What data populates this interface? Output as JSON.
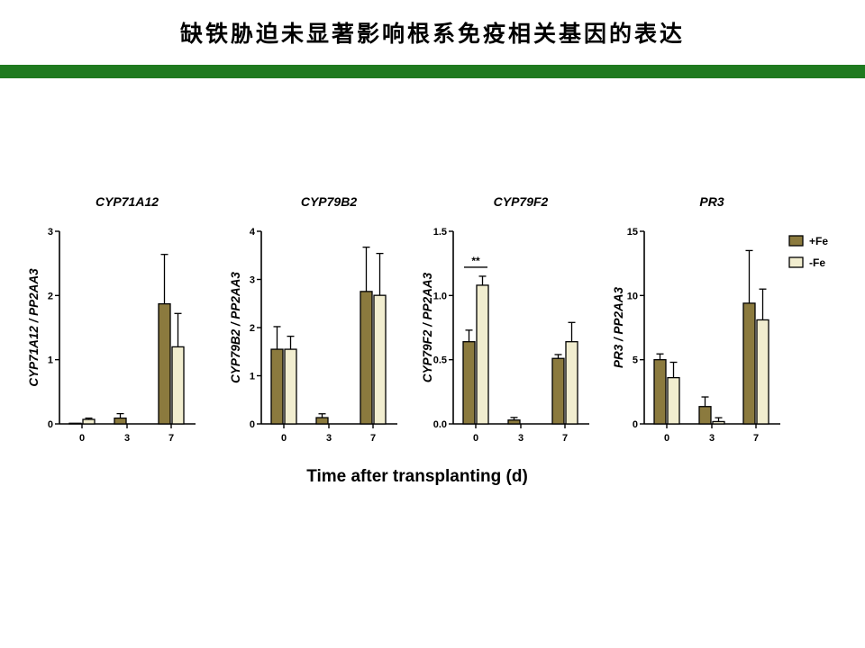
{
  "slide": {
    "title": "缺铁胁迫未显著影响根系免疫相关基因的表达"
  },
  "colors": {
    "accent_rule": "#1f7a1f",
    "plus_fe": "#8b7a3e",
    "minus_fe": "#f1edcf"
  },
  "chart_data": {
    "type": "bar",
    "xlabel": "Time after transplanting (d)",
    "categories": [
      "0",
      "3",
      "7"
    ],
    "legend": {
      "placement": "right",
      "entries": [
        {
          "label": "+Fe",
          "color": "#8b7a3e"
        },
        {
          "label": "-Fe",
          "color": "#f1edcf"
        }
      ]
    },
    "panels": [
      {
        "title": "CYP71A12",
        "ylabel": "CYP71A12 / PP2AA3",
        "ylim": [
          0,
          3
        ],
        "yticks": [
          "0",
          "1",
          "2",
          "3"
        ],
        "series": [
          {
            "name": "+Fe",
            "values": [
              0.01,
              0.09,
              1.87
            ],
            "errors": [
              0.0,
              0.07,
              0.77
            ]
          },
          {
            "name": "-Fe",
            "values": [
              0.07,
              0.0,
              1.2
            ],
            "errors": [
              0.02,
              0.0,
              0.52
            ]
          }
        ],
        "significance": []
      },
      {
        "title": "CYP79B2",
        "ylabel": "CYP79B2 / PP2AA3",
        "ylim": [
          0,
          4
        ],
        "yticks": [
          "0",
          "1",
          "2",
          "3",
          "4"
        ],
        "series": [
          {
            "name": "+Fe",
            "values": [
              1.55,
              0.13,
              2.75
            ],
            "errors": [
              0.47,
              0.08,
              0.92
            ]
          },
          {
            "name": "-Fe",
            "values": [
              1.55,
              0.0,
              2.67
            ],
            "errors": [
              0.27,
              0.0,
              0.87
            ]
          }
        ],
        "significance": []
      },
      {
        "title": "CYP79F2",
        "ylabel": "CYP79F2 / PP2AA3",
        "ylim": [
          0,
          1.5
        ],
        "yticks": [
          "0.0",
          "0.5",
          "1.0",
          "1.5"
        ],
        "series": [
          {
            "name": "+Fe",
            "values": [
              0.64,
              0.03,
              0.51
            ],
            "errors": [
              0.09,
              0.02,
              0.03
            ]
          },
          {
            "name": "-Fe",
            "values": [
              1.08,
              0.0,
              0.64
            ],
            "errors": [
              0.07,
              0.0,
              0.15
            ]
          }
        ],
        "significance": [
          {
            "category": "0",
            "label": "**"
          }
        ]
      },
      {
        "title": "PR3",
        "ylabel": "PR3 / PP2AA3",
        "ylim": [
          0,
          15
        ],
        "yticks": [
          "0",
          "5",
          "10",
          "15"
        ],
        "series": [
          {
            "name": "+Fe",
            "values": [
              5.0,
              1.35,
              9.4
            ],
            "errors": [
              0.45,
              0.75,
              4.1
            ]
          },
          {
            "name": "-Fe",
            "values": [
              3.6,
              0.18,
              8.1
            ],
            "errors": [
              1.2,
              0.3,
              2.4
            ]
          }
        ],
        "significance": []
      }
    ]
  }
}
